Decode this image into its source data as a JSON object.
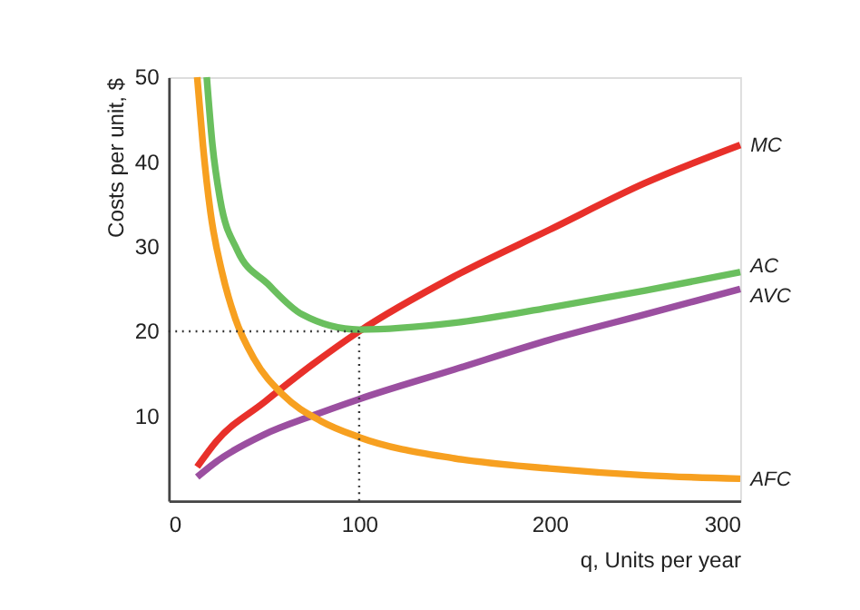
{
  "chart_data": {
    "type": "line",
    "xlabel": "q, Units per year",
    "ylabel": "Costs per unit, $",
    "xlim": [
      0,
      300
    ],
    "ylim": [
      0,
      50
    ],
    "xticks": [
      0,
      100,
      200,
      300
    ],
    "yticks": [
      10,
      20,
      30,
      40,
      50
    ],
    "grid": false,
    "marker": "none",
    "line_style": "solid",
    "series": [
      {
        "name": "MC",
        "color": "#e8302a",
        "x": [
          15,
          25,
          50,
          75,
          100,
          150,
          200,
          250,
          300
        ],
        "values": [
          4,
          7,
          11.6,
          16,
          20,
          26.5,
          32,
          37.5,
          42
        ]
      },
      {
        "name": "AC",
        "color": "#6abf5e",
        "x": [
          20,
          23,
          27,
          36,
          52,
          70,
          100,
          150,
          200,
          250,
          300
        ],
        "values": [
          50,
          42,
          35.6,
          29.6,
          25.6,
          22,
          20.2,
          21,
          22.8,
          24.8,
          27
        ]
      },
      {
        "name": "AVC",
        "color": "#9b4fa0",
        "x": [
          15,
          25,
          50,
          75,
          100,
          150,
          200,
          250,
          300
        ],
        "values": [
          2.8,
          4.6,
          7.8,
          10,
          12,
          15.5,
          19,
          22,
          25
        ]
      },
      {
        "name": "AFC",
        "color": "#f7a020",
        "x": [
          15,
          18,
          22,
          28,
          35,
          45,
          60,
          80,
          100,
          150,
          200,
          250,
          300
        ],
        "values": [
          50,
          42,
          34,
          27,
          21.5,
          16.7,
          12.5,
          9.4,
          7.5,
          5,
          3.8,
          3,
          2.6
        ]
      }
    ],
    "ref_lines": [
      {
        "axis": "y",
        "value": 20,
        "line_style": "dotted",
        "color": "#333333"
      },
      {
        "axis": "x",
        "value": 100,
        "line_style": "dotted",
        "color": "#333333"
      }
    ]
  }
}
